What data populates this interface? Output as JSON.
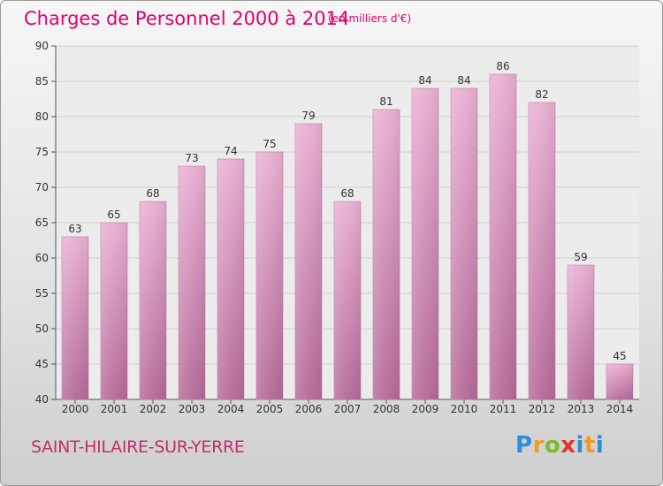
{
  "chart_data": {
    "type": "bar",
    "title": "Charges de Personnel 2000 à 2014",
    "subtitle": "(en milliers d'€)",
    "categories": [
      "2000",
      "2001",
      "2002",
      "2003",
      "2004",
      "2005",
      "2006",
      "2007",
      "2008",
      "2009",
      "2010",
      "2011",
      "2012",
      "2013",
      "2014"
    ],
    "values": [
      63,
      65,
      68,
      73,
      74,
      75,
      79,
      68,
      81,
      84,
      84,
      86,
      82,
      59,
      45
    ],
    "ylim": [
      40,
      90
    ],
    "yticks": [
      40,
      45,
      50,
      55,
      60,
      65,
      70,
      75,
      80,
      85,
      90
    ],
    "grid": true,
    "bar_color": "#d98bb8"
  },
  "footer": {
    "commune": "SAINT-HILAIRE-SUR-YERRE",
    "brand_letters": [
      "P",
      "r",
      "o",
      "x",
      "i",
      "t",
      "i"
    ]
  }
}
